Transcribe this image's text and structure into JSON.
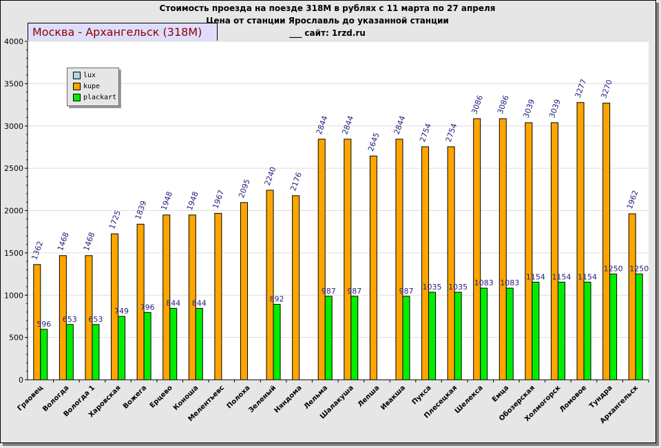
{
  "header": {
    "line1": "Стоимость проезда на поезде 318М в рублях с 11 марта по 27 апреля",
    "line2": "Цена от станции Ярославль до указанной станции",
    "line3": "___    сайт: 1rzd.ru"
  },
  "route_tab": {
    "label": "Москва - Архангельск (318М)"
  },
  "chart_data": {
    "type": "bar",
    "title": "Стоимость проезда на поезде 318М в рублях с 11 марта по 27 апреля",
    "subtitle": "Цена от станции Ярославль до указанной станции",
    "categories": [
      "Гряовец",
      "Вологда",
      "Вологда 1",
      "Харовская",
      "Вожега",
      "Ерцево",
      "Коноша",
      "Мелентьевс",
      "Полоха",
      "Зеленый",
      "Няндома",
      "Лельма",
      "Шалакуша",
      "Лепша",
      "Ивакша",
      "Пукса",
      "Плесецкая",
      "Шелекса",
      "Емца",
      "Обозерская",
      "Холмогорск",
      "Ломовое",
      "Тундра",
      "Архангельск"
    ],
    "series": [
      {
        "name": "lux",
        "color": "#add8e6",
        "values": [
          null,
          null,
          null,
          null,
          null,
          null,
          null,
          null,
          null,
          null,
          null,
          null,
          null,
          null,
          null,
          null,
          null,
          null,
          null,
          null,
          null,
          null,
          null,
          null
        ]
      },
      {
        "name": "kupe",
        "color": "#ffa500",
        "values": [
          1362,
          1468,
          1468,
          1725,
          1839,
          1948,
          1948,
          1967,
          2095,
          2240,
          2176,
          2844,
          2844,
          2645,
          2844,
          2754,
          2754,
          3086,
          3086,
          3039,
          3039,
          3277,
          3270,
          1962
        ]
      },
      {
        "name": "plackart",
        "color": "#00ee00",
        "values": [
          596,
          653,
          653,
          749,
          796,
          844,
          844,
          null,
          null,
          892,
          null,
          987,
          987,
          null,
          987,
          1035,
          1035,
          1083,
          1083,
          1154,
          1154,
          1154,
          1250,
          1250
        ]
      }
    ],
    "ylim": [
      0,
      4000
    ],
    "yticks": [
      0,
      500,
      1000,
      1500,
      2000,
      2500,
      3000,
      3500,
      4000
    ],
    "grid": true,
    "legend_position": "top-left"
  }
}
